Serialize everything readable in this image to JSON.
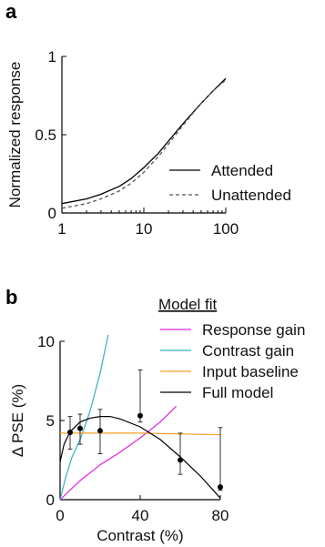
{
  "panel_a": {
    "letter": "a"
  },
  "panel_b": {
    "letter": "b"
  },
  "chart_data": [
    {
      "type": "line",
      "xlabel": "",
      "ylabel": "Normalized response",
      "x_scale": "log",
      "xlim": [
        1,
        100
      ],
      "ylim": [
        0,
        1
      ],
      "x_ticks": [
        "1",
        "10",
        "100"
      ],
      "y_ticks": [
        "0",
        "0.5",
        "1"
      ],
      "grid": false,
      "legend_position": "right",
      "series": [
        {
          "name": "Attended",
          "style": "solid",
          "color": "#000000",
          "x": [
            1,
            2,
            3,
            5,
            7,
            10,
            15,
            20,
            30,
            50,
            70,
            100
          ],
          "y": [
            0.06,
            0.09,
            0.12,
            0.17,
            0.22,
            0.29,
            0.38,
            0.46,
            0.57,
            0.7,
            0.78,
            0.86
          ]
        },
        {
          "name": "Unattended",
          "style": "dashed",
          "color": "#555555",
          "x": [
            1,
            2,
            3,
            5,
            7,
            10,
            15,
            20,
            30,
            50,
            70,
            100
          ],
          "y": [
            0.03,
            0.06,
            0.09,
            0.14,
            0.19,
            0.26,
            0.36,
            0.44,
            0.56,
            0.7,
            0.78,
            0.85
          ]
        }
      ]
    },
    {
      "type": "line",
      "xlabel": "Contrast (%)",
      "ylabel": "Δ PSE (%)",
      "xlim": [
        0,
        80
      ],
      "ylim": [
        0,
        10
      ],
      "x_ticks": [
        "0",
        "40",
        "80"
      ],
      "y_ticks": [
        "0",
        "5",
        "10"
      ],
      "grid": false,
      "legend_title": "Model fit",
      "legend_position": "top-right",
      "series": [
        {
          "name": "Response gain",
          "color": "#e020e0",
          "x": [
            0,
            5,
            10,
            20,
            30,
            40,
            50,
            58
          ],
          "y": [
            0.0,
            0.6,
            1.2,
            2.2,
            3.0,
            3.9,
            4.9,
            5.9
          ]
        },
        {
          "name": "Contrast gain",
          "color": "#33b0c0",
          "x": [
            0,
            3,
            6,
            10,
            15,
            20,
            24
          ],
          "y": [
            0.0,
            1.5,
            2.7,
            3.8,
            5.6,
            8.0,
            10.4
          ]
        },
        {
          "name": "Input baseline",
          "color": "#f0a020",
          "x": [
            0,
            5,
            10,
            20,
            40,
            60,
            80
          ],
          "y": [
            4.2,
            4.2,
            4.2,
            4.2,
            4.2,
            4.15,
            4.1
          ]
        },
        {
          "name": "Full model",
          "color": "#000000",
          "x": [
            0,
            2,
            5,
            10,
            15,
            20,
            25,
            30,
            40,
            50,
            60,
            70,
            80
          ],
          "y": [
            2.4,
            3.5,
            4.3,
            4.9,
            5.15,
            5.25,
            5.25,
            5.1,
            4.6,
            3.8,
            2.7,
            1.5,
            0.1
          ]
        },
        {
          "name": "",
          "type": "errorbar",
          "color": "#000000",
          "x": [
            5,
            10,
            20,
            40,
            60,
            80
          ],
          "y": [
            4.25,
            4.5,
            4.35,
            5.3,
            2.5,
            0.8
          ],
          "err_low": [
            3.2,
            3.5,
            2.9,
            4.9,
            1.6,
            0.6
          ],
          "err_high": [
            5.25,
            5.4,
            5.7,
            8.2,
            4.2,
            4.55
          ]
        }
      ]
    }
  ]
}
